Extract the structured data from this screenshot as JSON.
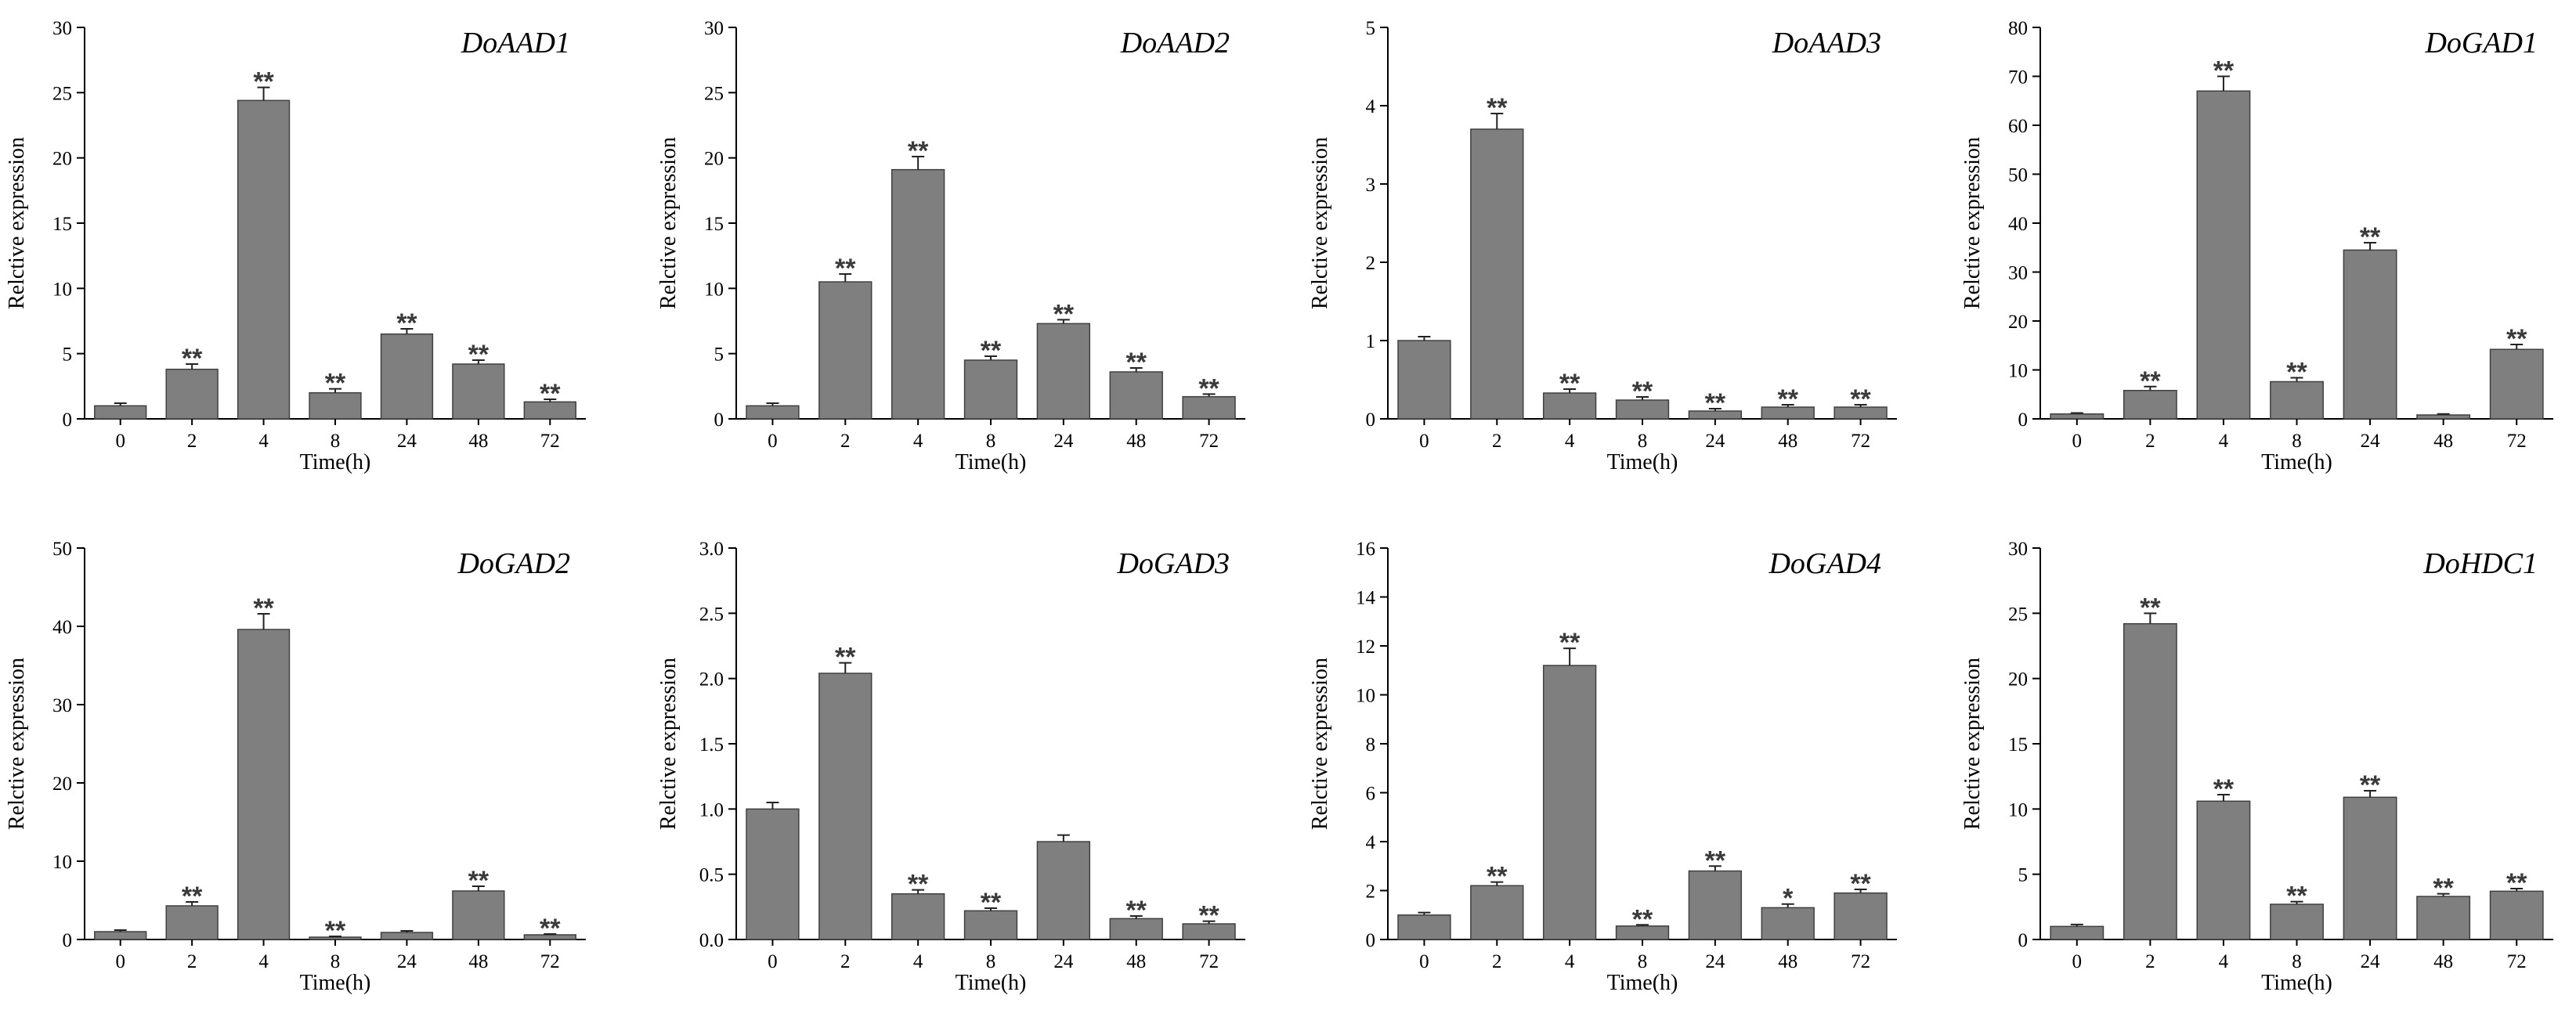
{
  "colors": {
    "bar": "#7f7f7f",
    "bar_edge": "#404040",
    "axis": "#000000"
  },
  "chart_data": [
    {
      "type": "bar",
      "title": "DoAAD1",
      "xlabel": "Time(h)",
      "ylabel": "Relctive expression",
      "categories": [
        "0",
        "2",
        "4",
        "8",
        "24",
        "48",
        "72"
      ],
      "values": [
        1.0,
        3.8,
        24.4,
        2.0,
        6.5,
        4.2,
        1.3
      ],
      "errors": [
        0.2,
        0.4,
        1.0,
        0.3,
        0.4,
        0.3,
        0.2
      ],
      "significance": [
        "",
        "**",
        "**",
        "**",
        "**",
        "**",
        "**"
      ],
      "ylim": [
        0,
        30
      ],
      "yticks": [
        "0",
        "5",
        "10",
        "15",
        "20",
        "25",
        "30"
      ]
    },
    {
      "type": "bar",
      "title": "DoAAD2",
      "xlabel": "Time(h)",
      "ylabel": "Relctive expression",
      "categories": [
        "0",
        "2",
        "4",
        "8",
        "24",
        "48",
        "72"
      ],
      "values": [
        1.0,
        10.5,
        19.1,
        4.5,
        7.3,
        3.6,
        1.7
      ],
      "errors": [
        0.2,
        0.6,
        1.0,
        0.3,
        0.3,
        0.3,
        0.2
      ],
      "significance": [
        "",
        "**",
        "**",
        "**",
        "**",
        "**",
        "**"
      ],
      "ylim": [
        0,
        30
      ],
      "yticks": [
        "0",
        "5",
        "10",
        "15",
        "20",
        "25",
        "30"
      ]
    },
    {
      "type": "bar",
      "title": "DoAAD3",
      "xlabel": "Time(h)",
      "ylabel": "Relctive expression",
      "categories": [
        "0",
        "2",
        "4",
        "8",
        "24",
        "48",
        "72"
      ],
      "values": [
        1.0,
        3.7,
        0.33,
        0.24,
        0.1,
        0.15,
        0.15
      ],
      "errors": [
        0.05,
        0.2,
        0.05,
        0.04,
        0.03,
        0.03,
        0.03
      ],
      "significance": [
        "",
        "**",
        "**",
        "**",
        "**",
        "**",
        "**"
      ],
      "ylim": [
        0,
        5
      ],
      "yticks": [
        "0",
        "1",
        "2",
        "3",
        "4",
        "5"
      ]
    },
    {
      "type": "bar",
      "title": "DoGAD1",
      "xlabel": "Time(h)",
      "ylabel": "Relctive expression",
      "categories": [
        "0",
        "2",
        "4",
        "8",
        "24",
        "48",
        "72"
      ],
      "values": [
        1.0,
        5.8,
        67.0,
        7.6,
        34.5,
        0.8,
        14.2
      ],
      "errors": [
        0.2,
        0.8,
        3.0,
        0.8,
        1.5,
        0.2,
        1.0
      ],
      "significance": [
        "",
        "**",
        "**",
        "**",
        "**",
        "",
        "**"
      ],
      "ylim": [
        0,
        80
      ],
      "yticks": [
        "0",
        "10",
        "20",
        "30",
        "40",
        "50",
        "60",
        "70",
        "80"
      ]
    },
    {
      "type": "bar",
      "title": "DoGAD2",
      "xlabel": "Time(h)",
      "ylabel": "Relctive expression",
      "categories": [
        "0",
        "2",
        "4",
        "8",
        "24",
        "48",
        "72"
      ],
      "values": [
        1.0,
        4.3,
        39.6,
        0.3,
        0.9,
        6.2,
        0.6
      ],
      "errors": [
        0.2,
        0.5,
        2.0,
        0.1,
        0.2,
        0.6,
        0.1
      ],
      "significance": [
        "",
        "**",
        "**",
        "**",
        "",
        "**",
        "**"
      ],
      "ylim": [
        0,
        50
      ],
      "yticks": [
        "0",
        "10",
        "20",
        "30",
        "40",
        "50"
      ]
    },
    {
      "type": "bar",
      "title": "DoGAD3",
      "xlabel": "Time(h)",
      "ylabel": "Relctive expression",
      "categories": [
        "0",
        "2",
        "4",
        "8",
        "24",
        "48",
        "72"
      ],
      "values": [
        1.0,
        2.04,
        0.35,
        0.22,
        0.75,
        0.16,
        0.12
      ],
      "errors": [
        0.05,
        0.08,
        0.03,
        0.02,
        0.05,
        0.02,
        0.02
      ],
      "significance": [
        "",
        "**",
        "**",
        "**",
        "",
        "**",
        "**"
      ],
      "ylim": [
        0,
        3.0
      ],
      "yticks": [
        "0.0",
        "0.5",
        "1.0",
        "1.5",
        "2.0",
        "2.5",
        "3.0"
      ]
    },
    {
      "type": "bar",
      "title": "DoGAD4",
      "xlabel": "Time(h)",
      "ylabel": "Relctive expression",
      "categories": [
        "0",
        "2",
        "4",
        "8",
        "24",
        "48",
        "72"
      ],
      "values": [
        1.0,
        2.2,
        11.2,
        0.55,
        2.8,
        1.3,
        1.9
      ],
      "errors": [
        0.1,
        0.15,
        0.7,
        0.05,
        0.2,
        0.15,
        0.15
      ],
      "significance": [
        "",
        "**",
        "**",
        "**",
        "**",
        "*",
        "**"
      ],
      "ylim": [
        0,
        16
      ],
      "yticks": [
        "0",
        "2",
        "4",
        "6",
        "8",
        "10",
        "12",
        "14",
        "16"
      ]
    },
    {
      "type": "bar",
      "title": "DoHDC1",
      "xlabel": "Time(h)",
      "ylabel": "Relctive expression",
      "categories": [
        "0",
        "2",
        "4",
        "8",
        "24",
        "48",
        "72"
      ],
      "values": [
        1.0,
        24.2,
        10.6,
        2.7,
        10.9,
        3.3,
        3.7
      ],
      "errors": [
        0.15,
        0.8,
        0.5,
        0.2,
        0.5,
        0.2,
        0.2
      ],
      "significance": [
        "",
        "**",
        "**",
        "**",
        "**",
        "**",
        "**"
      ],
      "ylim": [
        0,
        30
      ],
      "yticks": [
        "0",
        "5",
        "10",
        "15",
        "20",
        "25",
        "30"
      ]
    }
  ]
}
